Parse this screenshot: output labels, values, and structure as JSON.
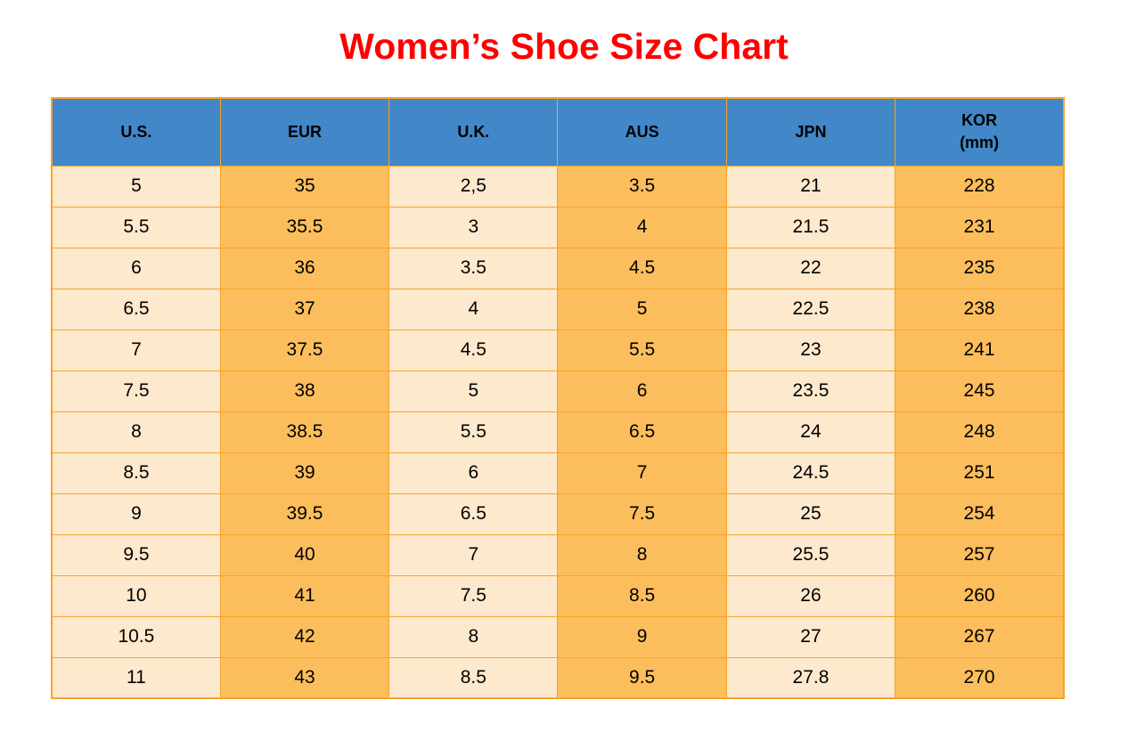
{
  "chart_data": {
    "type": "table",
    "title": "Women’s Shoe Size Chart",
    "columns": [
      {
        "label": "U.S.",
        "lines": [
          "U.S."
        ]
      },
      {
        "label": "EUR",
        "lines": [
          "EUR"
        ]
      },
      {
        "label": "U.K.",
        "lines": [
          "U.K."
        ]
      },
      {
        "label": "AUS",
        "lines": [
          "AUS"
        ]
      },
      {
        "label": "JPN",
        "lines": [
          "JPN"
        ]
      },
      {
        "label": "KOR (mm)",
        "lines": [
          "KOR",
          "(mm)"
        ]
      }
    ],
    "rows": [
      [
        "5",
        "35",
        "2,5",
        "3.5",
        "21",
        "228"
      ],
      [
        "5.5",
        "35.5",
        "3",
        "4",
        "21.5",
        "231"
      ],
      [
        "6",
        "36",
        "3.5",
        "4.5",
        "22",
        "235"
      ],
      [
        "6.5",
        "37",
        "4",
        "5",
        "22.5",
        "238"
      ],
      [
        "7",
        "37.5",
        "4.5",
        "5.5",
        "23",
        "241"
      ],
      [
        "7.5",
        "38",
        "5",
        "6",
        "23.5",
        "245"
      ],
      [
        "8",
        "38.5",
        "5.5",
        "6.5",
        "24",
        "248"
      ],
      [
        "8.5",
        "39",
        "6",
        "7",
        "24.5",
        "251"
      ],
      [
        "9",
        "39.5",
        "6.5",
        "7.5",
        "25",
        "254"
      ],
      [
        "9.5",
        "40",
        "7",
        "8",
        "25.5",
        "257"
      ],
      [
        "10",
        "41",
        "7.5",
        "8.5",
        "26",
        "260"
      ],
      [
        "10.5",
        "42",
        "8",
        "9",
        "27",
        "267"
      ],
      [
        "11",
        "43",
        "8.5",
        "9.5",
        "27.8",
        "270"
      ]
    ],
    "column_shading": [
      "light",
      "orange",
      "light",
      "orange",
      "light",
      "orange"
    ],
    "layout_hints": {
      "grid": "on",
      "header_position": "top"
    }
  },
  "colors": {
    "title": "#ff0000",
    "header_bg": "#4287c8",
    "header_text": "#000000",
    "border": "#f7a32a",
    "cell_light": "#fde9cd",
    "cell_orange": "#fcbe5c",
    "cell_text": "#000000",
    "background": "#ffffff"
  }
}
